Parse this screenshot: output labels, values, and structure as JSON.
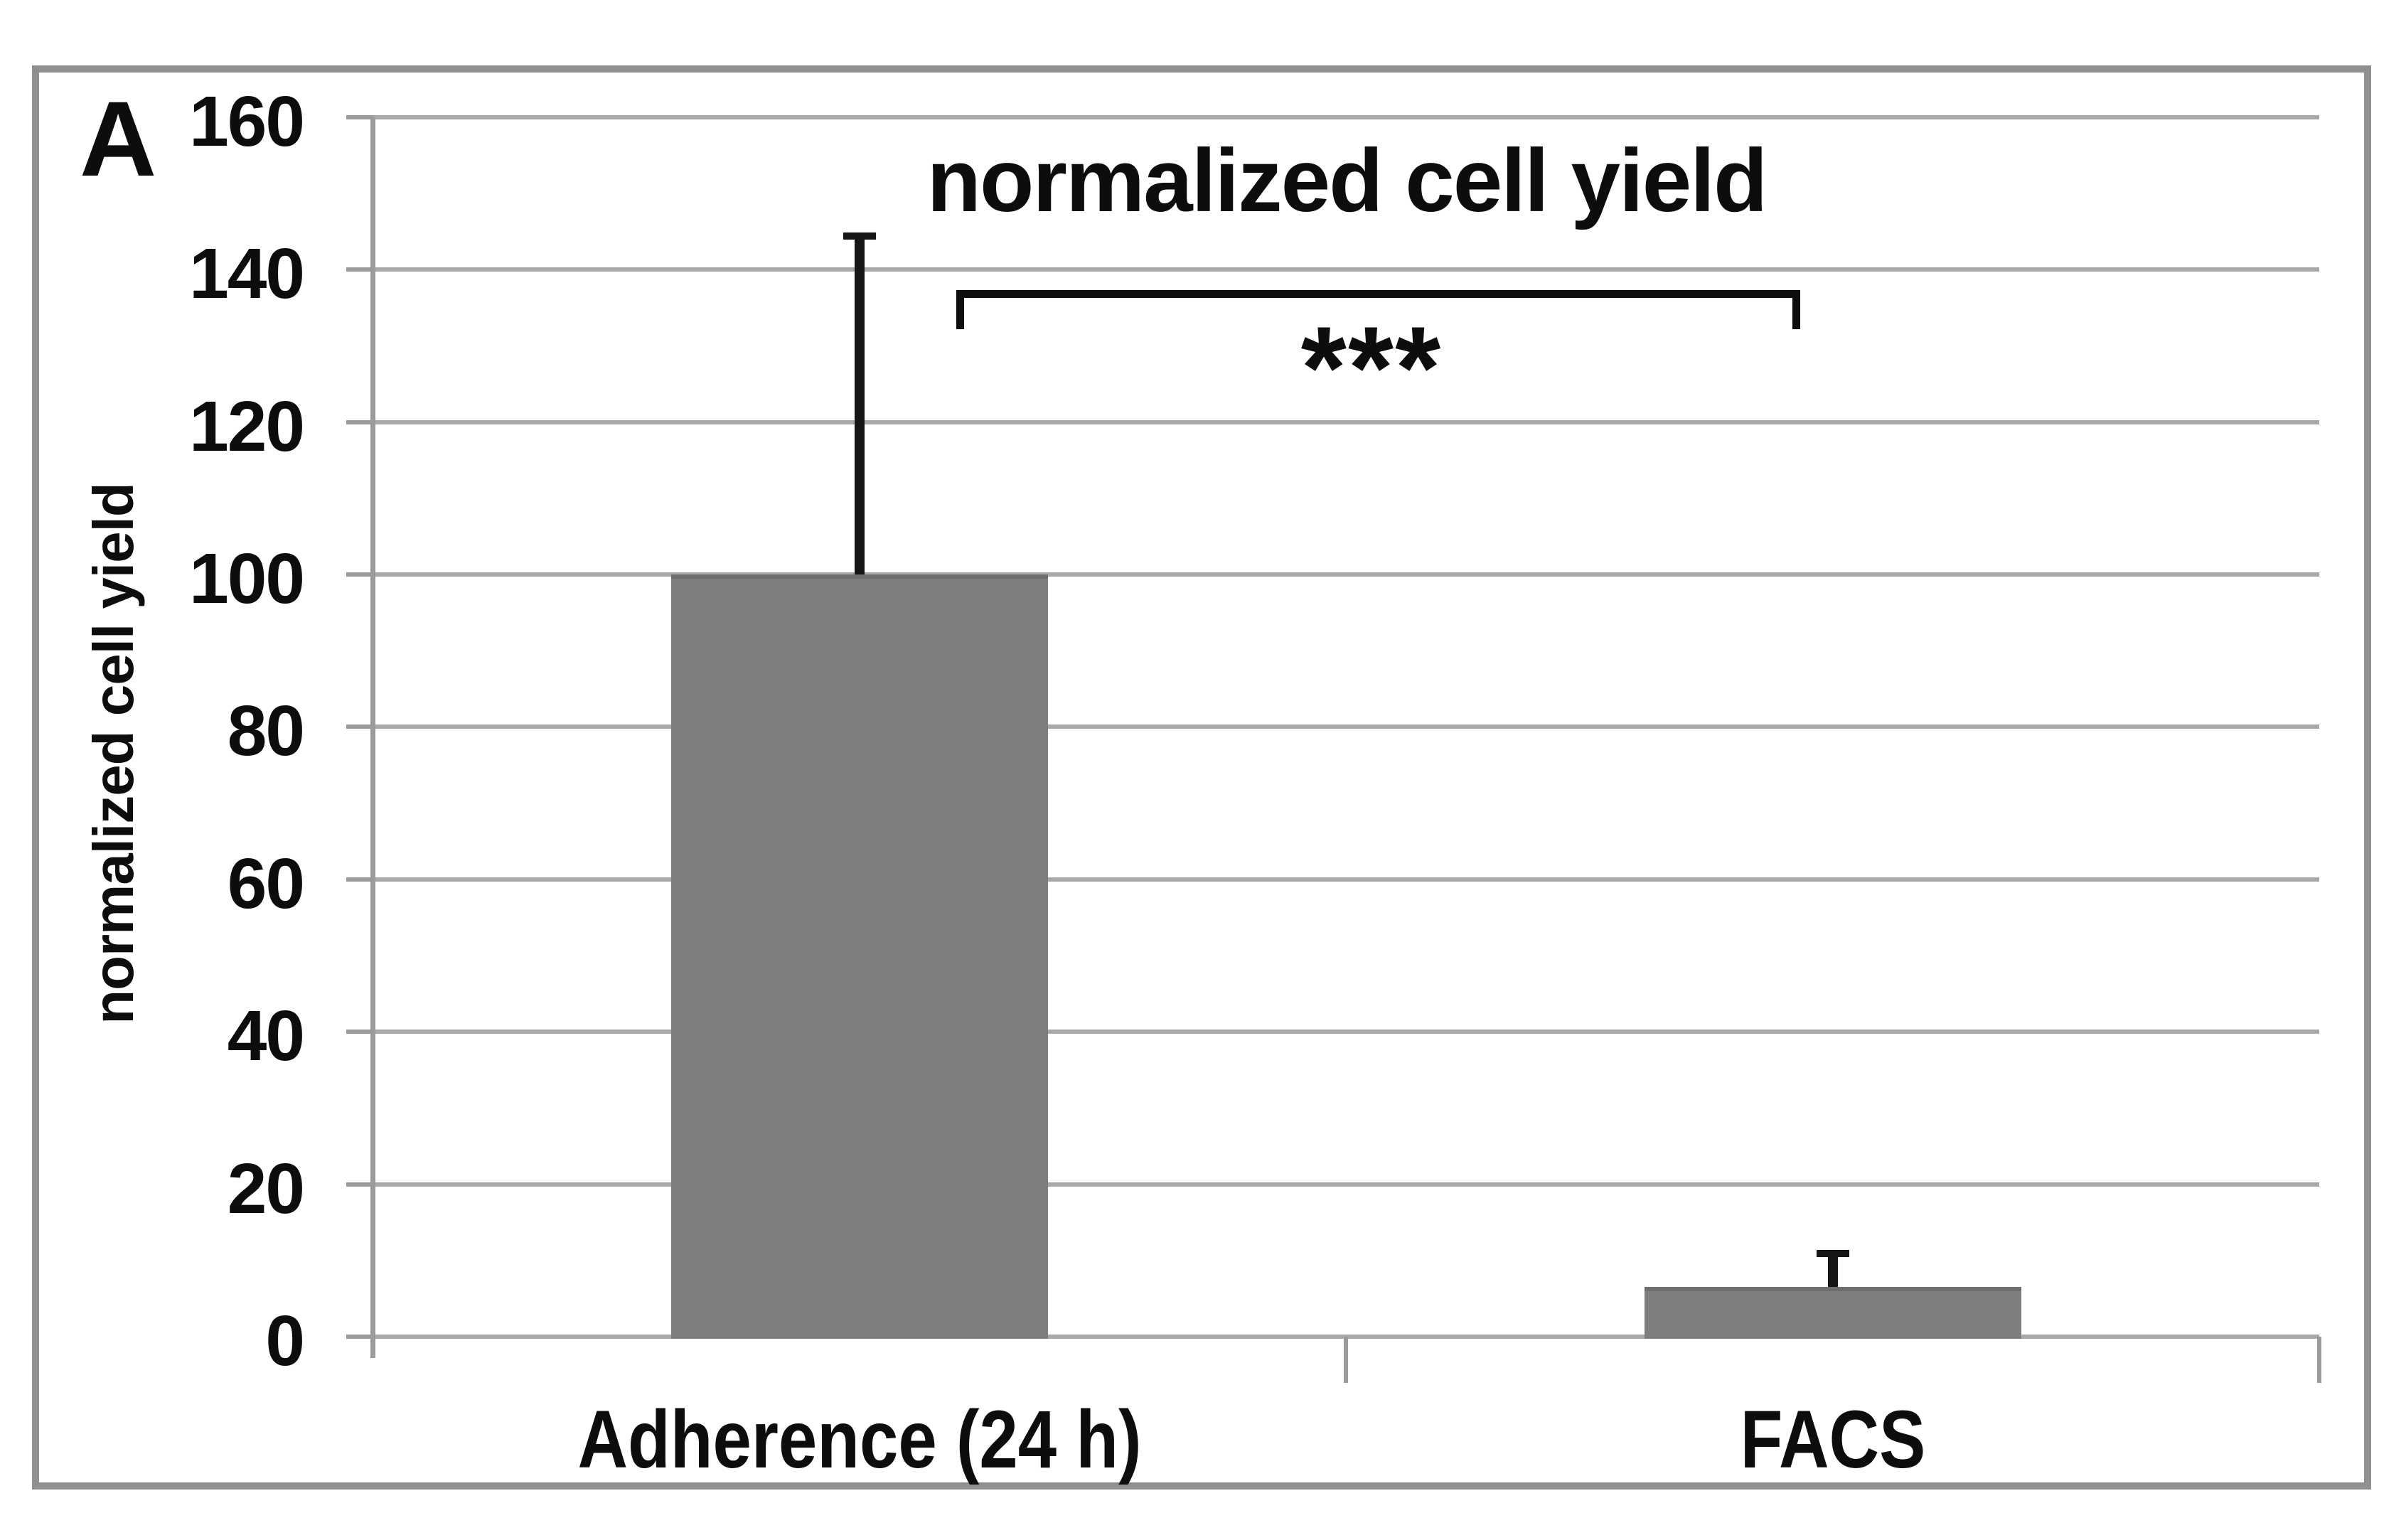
{
  "panel_label": "A",
  "chart_data": {
    "type": "bar",
    "title": "normalized cell yield",
    "ylabel": "normalized cell yield",
    "xlabel": "",
    "categories": [
      "Adherence (24 h)",
      "FACS"
    ],
    "values": [
      100,
      6.5
    ],
    "error_plus": [
      44,
      4
    ],
    "y_ticks": [
      0,
      20,
      40,
      60,
      80,
      100,
      120,
      140,
      160
    ],
    "ylim": [
      0,
      160
    ],
    "grid": true,
    "legend_position": "none",
    "significance": {
      "label": "***",
      "between": [
        "Adherence (24 h)",
        "FACS"
      ]
    },
    "bar_color": "#7e7e7e",
    "bar_edge_color": "#6e6e6e",
    "grid_color": "#a9a9a9",
    "axis_color": "#9b9b9b",
    "frame_color": "#8f8f8f",
    "annotation_color": "#161616"
  }
}
